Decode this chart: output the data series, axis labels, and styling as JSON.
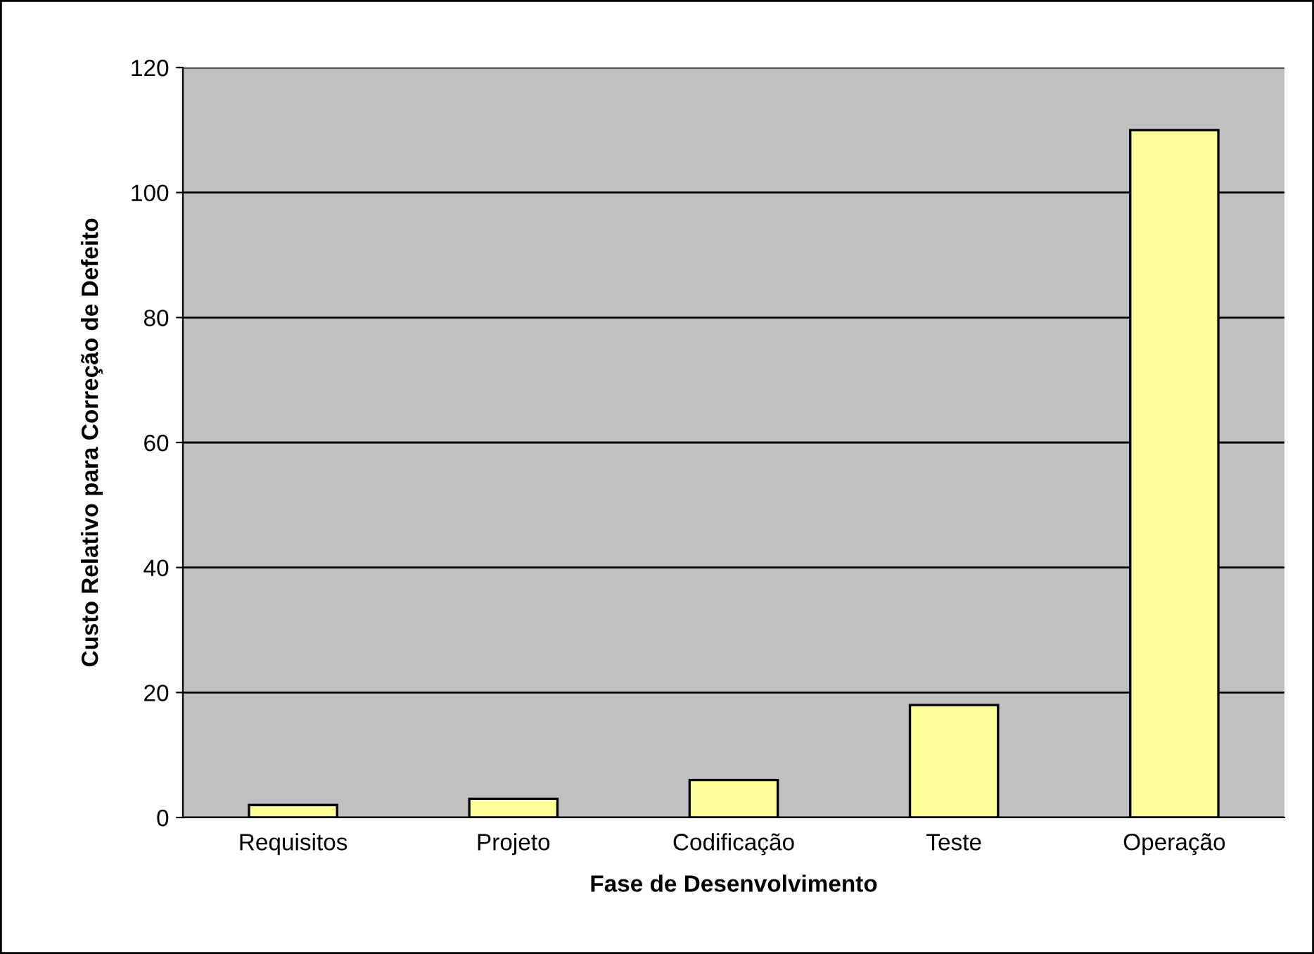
{
  "chart_data": {
    "type": "bar",
    "xlabel": "Fase de Desenvolvimento",
    "ylabel": "Custo Relativo para Correção de Defeito",
    "categories": [
      "Requisitos",
      "Projeto",
      "Codificação",
      "Teste",
      "Operação"
    ],
    "values": [
      2,
      3,
      6,
      18,
      110
    ],
    "color": "#ffff99",
    "ylim": [
      0,
      120
    ],
    "yticks": [
      0,
      20,
      40,
      60,
      80,
      100,
      120
    ],
    "grid": "y",
    "legend": false
  }
}
